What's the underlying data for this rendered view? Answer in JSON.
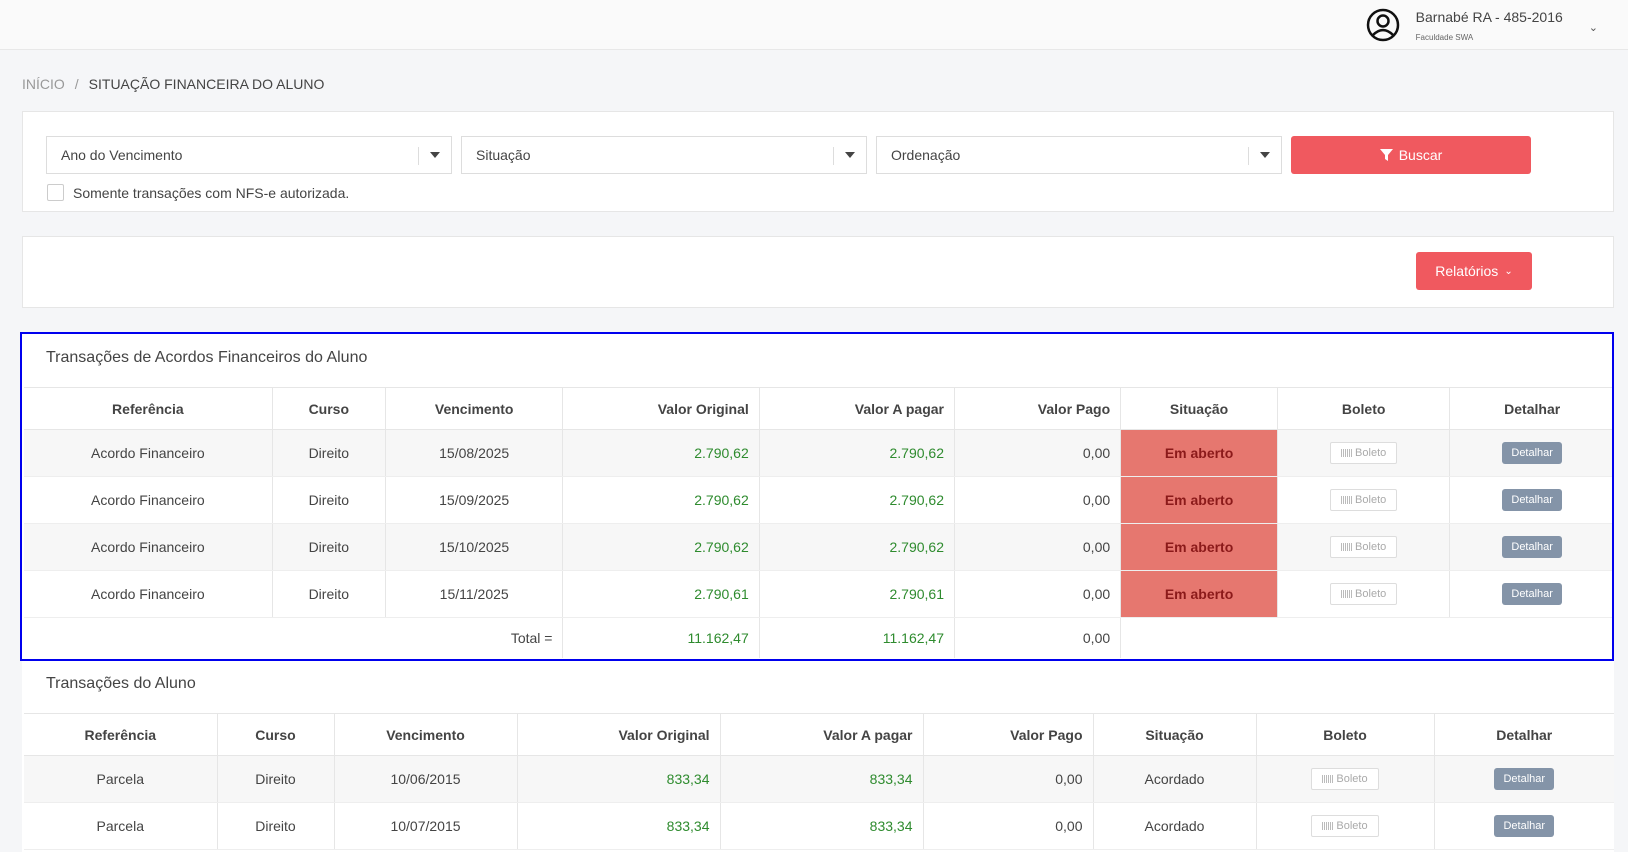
{
  "user": {
    "name": "Barnabé RA - 485-2016",
    "institution": "Faculdade SWA",
    "icon": "user-circle-icon"
  },
  "breadcrumb": {
    "home": "INÍCIO",
    "separator": "/",
    "current": "SITUAÇÃO FINANCEIRA DO ALUNO"
  },
  "filters": {
    "year": "Ano do Vencimento",
    "status": "Situação",
    "order": "Ordenação",
    "search_label": "Buscar",
    "nfse_label": "Somente transações com NFS-e autorizada."
  },
  "reports_label": "Relatórios",
  "colors": {
    "accent": "#f0595f",
    "status_open": "#e6776f",
    "detail_button": "#8494a8",
    "value_green": "#2e8b2e",
    "highlight": "#0000ee"
  },
  "agreements": {
    "title": "Transações de Acordos Financeiros do Aluno",
    "headers": [
      "Referência",
      "Curso",
      "Vencimento",
      "Valor Original",
      "Valor A pagar",
      "Valor Pago",
      "Situação",
      "Boleto",
      "Detalhar"
    ],
    "rows": [
      {
        "ref": "Acordo Financeiro",
        "course": "Direito",
        "due": "15/08/2025",
        "original": "2.790,62",
        "to_pay": "2.790,62",
        "paid": "0,00",
        "status": "Em aberto",
        "boleto": "Boleto",
        "detail": "Detalhar"
      },
      {
        "ref": "Acordo Financeiro",
        "course": "Direito",
        "due": "15/09/2025",
        "original": "2.790,62",
        "to_pay": "2.790,62",
        "paid": "0,00",
        "status": "Em aberto",
        "boleto": "Boleto",
        "detail": "Detalhar"
      },
      {
        "ref": "Acordo Financeiro",
        "course": "Direito",
        "due": "15/10/2025",
        "original": "2.790,62",
        "to_pay": "2.790,62",
        "paid": "0,00",
        "status": "Em aberto",
        "boleto": "Boleto",
        "detail": "Detalhar"
      },
      {
        "ref": "Acordo Financeiro",
        "course": "Direito",
        "due": "15/11/2025",
        "original": "2.790,61",
        "to_pay": "2.790,61",
        "paid": "0,00",
        "status": "Em aberto",
        "boleto": "Boleto",
        "detail": "Detalhar"
      }
    ],
    "total": {
      "label": "Total =",
      "original": "11.162,47",
      "to_pay": "11.162,47",
      "paid": "0,00"
    }
  },
  "transactions": {
    "title": "Transações do Aluno",
    "headers": [
      "Referência",
      "Curso",
      "Vencimento",
      "Valor Original",
      "Valor A pagar",
      "Valor Pago",
      "Situação",
      "Boleto",
      "Detalhar"
    ],
    "rows": [
      {
        "ref": "Parcela",
        "course": "Direito",
        "due": "10/06/2015",
        "original": "833,34",
        "to_pay": "833,34",
        "paid": "0,00",
        "status": "Acordado",
        "boleto": "Boleto",
        "detail": "Detalhar"
      },
      {
        "ref": "Parcela",
        "course": "Direito",
        "due": "10/07/2015",
        "original": "833,34",
        "to_pay": "833,34",
        "paid": "0,00",
        "status": "Acordado",
        "boleto": "Boleto",
        "detail": "Detalhar"
      }
    ]
  }
}
